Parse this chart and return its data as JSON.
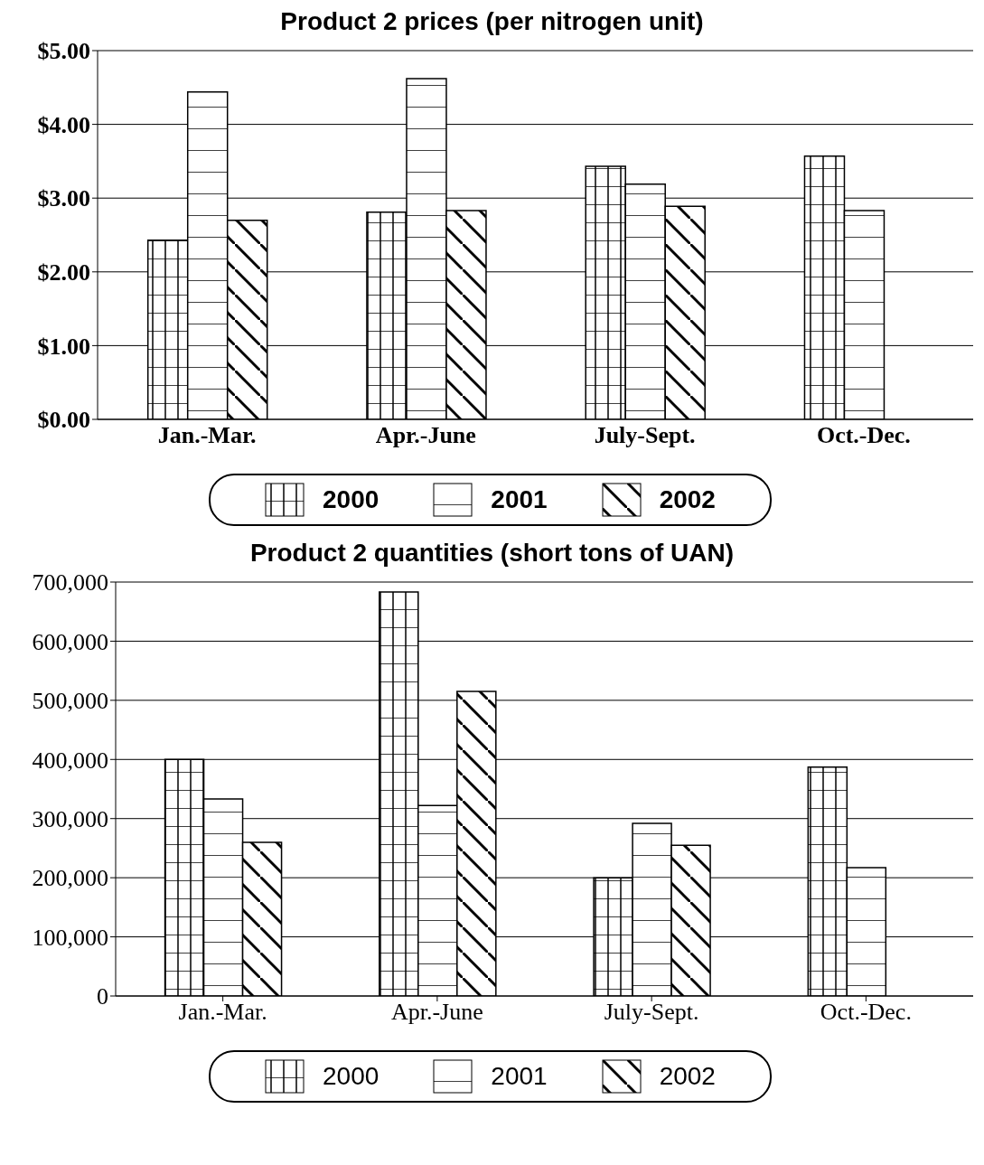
{
  "chart_data": [
    {
      "type": "bar",
      "title": "Product 2 prices (per nitrogen unit)",
      "categories": [
        "Jan.-Mar.",
        "Apr.-June",
        "July-Sept.",
        "Oct.-Dec."
      ],
      "series": [
        {
          "name": "2000",
          "color": "#000000",
          "values": [
            2.43,
            2.81,
            3.43,
            3.57
          ]
        },
        {
          "name": "2001",
          "color": "#000000",
          "values": [
            4.44,
            4.62,
            3.19,
            2.83
          ]
        },
        {
          "name": "2002",
          "color": "#000000",
          "values": [
            2.7,
            2.83,
            2.89,
            null
          ]
        }
      ],
      "ylim": [
        0,
        5
      ],
      "yticks": [
        {
          "value": 0,
          "label": "$0.00"
        },
        {
          "value": 1,
          "label": "$1.00"
        },
        {
          "value": 2,
          "label": "$2.00"
        },
        {
          "value": 3,
          "label": "$3.00"
        },
        {
          "value": 4,
          "label": "$4.00"
        },
        {
          "value": 5,
          "label": "$5.00"
        }
      ],
      "grid": "y",
      "legend": "bottom"
    },
    {
      "type": "bar",
      "title": "Product 2 quantities (short tons of UAN)",
      "categories": [
        "Jan.-Mar.",
        "Apr.-June",
        "July-Sept.",
        "Oct.-Dec."
      ],
      "series": [
        {
          "name": "2000",
          "color": "#000000",
          "values": [
            400000,
            683000,
            200000,
            387000
          ]
        },
        {
          "name": "2001",
          "color": "#000000",
          "values": [
            333000,
            322000,
            292000,
            217000
          ]
        },
        {
          "name": "2002",
          "color": "#000000",
          "values": [
            260000,
            515000,
            255000,
            null
          ]
        }
      ],
      "ylim": [
        0,
        700000
      ],
      "yticks": [
        0,
        {
          "value": 100000,
          "label": "100,000"
        },
        {
          "value": 200000,
          "label": "200,000"
        },
        {
          "value": 300000,
          "label": "300,000"
        },
        {
          "value": 400000,
          "label": "400,000"
        },
        {
          "value": 500000,
          "label": "500,000"
        },
        {
          "value": 600000,
          "label": "600,000"
        },
        {
          "value": 700000,
          "label": "700,000"
        }
      ],
      "grid": "y",
      "legend": "bottom"
    }
  ]
}
